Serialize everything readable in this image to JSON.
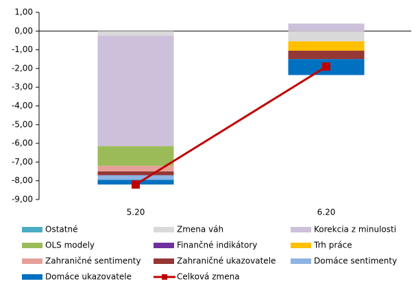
{
  "chart_data": {
    "type": "stacked_bar_line",
    "categories": [
      "5.20",
      "6.20"
    ],
    "ylim": [
      -9,
      1
    ],
    "yticks": [
      {
        "value": 1,
        "label": "1,00"
      },
      {
        "value": 0,
        "label": "0,00"
      },
      {
        "value": -1,
        "label": "-1,00"
      },
      {
        "value": -2,
        "label": "-2,00"
      },
      {
        "value": -3,
        "label": "-3,00"
      },
      {
        "value": -4,
        "label": "-4,00"
      },
      {
        "value": -5,
        "label": "-5,00"
      },
      {
        "value": -6,
        "label": "-6,00"
      },
      {
        "value": -7,
        "label": "-7,00"
      },
      {
        "value": -8,
        "label": "-8,00"
      },
      {
        "value": -9,
        "label": "-9,00"
      }
    ],
    "grid": false,
    "series": [
      {
        "name": "Ostatné",
        "color": "#4bacc6",
        "values": [
          0,
          0
        ]
      },
      {
        "name": "Zmena váh",
        "color": "#d9d9d9",
        "values": [
          -0.25,
          -0.55
        ]
      },
      {
        "name": "Korekcia z minulosti",
        "color": "#ccc0da",
        "values": [
          -5.9,
          0.4
        ]
      },
      {
        "name": "OLS modely",
        "color": "#9bbb59",
        "values": [
          -1.05,
          0
        ]
      },
      {
        "name": "Finančné indikátory",
        "color": "#7030a0",
        "values": [
          0,
          0
        ]
      },
      {
        "name": "Trh práce",
        "color": "#ffc000",
        "values": [
          0,
          -0.5
        ]
      },
      {
        "name": "Zahraničné sentimenty",
        "color": "#e6a09a",
        "values": [
          -0.3,
          0
        ]
      },
      {
        "name": "Zahraničné ukazovatele",
        "color": "#953735",
        "values": [
          -0.2,
          -0.45
        ]
      },
      {
        "name": "Domáce sentimenty",
        "color": "#8db4e2",
        "values": [
          -0.25,
          0
        ]
      },
      {
        "name": "Domáce ukazovatele",
        "color": "#0070c0",
        "values": [
          -0.25,
          -0.85
        ]
      },
      {
        "name": "Celková zmena",
        "color": "#c00000",
        "type": "line",
        "values": [
          -8.2,
          -1.9
        ]
      }
    ]
  }
}
